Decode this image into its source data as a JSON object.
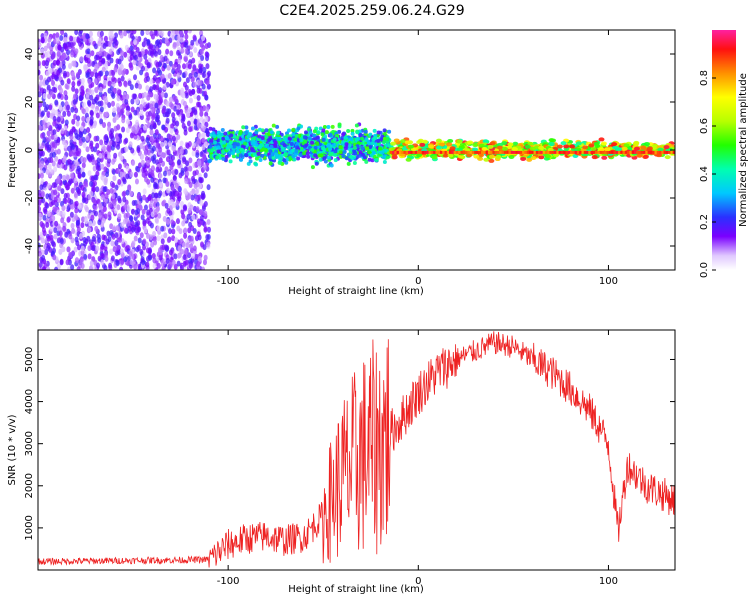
{
  "title": "C2E4.2025.259.06.24.G29",
  "chart_data": [
    {
      "type": "heatmap",
      "name": "spectrogram",
      "xlabel": "Height of straight line (km)",
      "ylabel": "Frequency (Hz)",
      "xlim": [
        -200,
        135
      ],
      "ylim": [
        -50,
        50
      ],
      "xticks": [
        "-100",
        "0",
        "100"
      ],
      "yticks": [
        "-40",
        "-20",
        "0",
        "20",
        "40"
      ],
      "colorbar_label": "Normalized spectral amplitude",
      "colorbar_ticks": [
        "0.0",
        "0.2",
        "0.4",
        "0.6",
        "0.8"
      ],
      "colorbar_range": [
        0,
        1
      ],
      "regions": [
        {
          "x_range": [
            -200,
            -110
          ],
          "description": "scattered noise",
          "freq_range": [
            -50,
            50
          ],
          "amplitude": [
            0.05,
            0.2
          ]
        },
        {
          "x_range": [
            -110,
            -15
          ],
          "description": "broad signal band",
          "freq_range": [
            -4,
            8
          ],
          "amplitude": [
            0.15,
            0.55
          ]
        },
        {
          "x_range": [
            -15,
            135
          ],
          "description": "narrow strong band near 0 Hz",
          "freq_range": [
            -3,
            3
          ],
          "amplitude": [
            0.4,
            0.95
          ]
        }
      ]
    },
    {
      "type": "line",
      "name": "snr",
      "xlabel": "Height of straight line (km)",
      "ylabel": "SNR (10 * v/v)",
      "xlim": [
        -200,
        135
      ],
      "ylim": [
        0,
        5700
      ],
      "xticks": [
        "-100",
        "0",
        "100"
      ],
      "yticks": [
        "1000",
        "2000",
        "3000",
        "4000",
        "5000"
      ],
      "series": [
        {
          "name": "SNR",
          "color": "#ee2222",
          "x": [
            -200,
            -180,
            -160,
            -140,
            -120,
            -110,
            -100,
            -90,
            -80,
            -70,
            -60,
            -50,
            -40,
            -30,
            -20,
            -10,
            0,
            10,
            20,
            30,
            40,
            50,
            60,
            70,
            80,
            90,
            100,
            105,
            110,
            120,
            135
          ],
          "y": [
            200,
            210,
            220,
            230,
            240,
            250,
            600,
            750,
            800,
            700,
            800,
            1300,
            2200,
            2700,
            3000,
            3500,
            4200,
            4700,
            5000,
            5200,
            5400,
            5300,
            5000,
            4700,
            4300,
            3800,
            3000,
            900,
            2500,
            2000,
            1650
          ]
        }
      ]
    }
  ]
}
